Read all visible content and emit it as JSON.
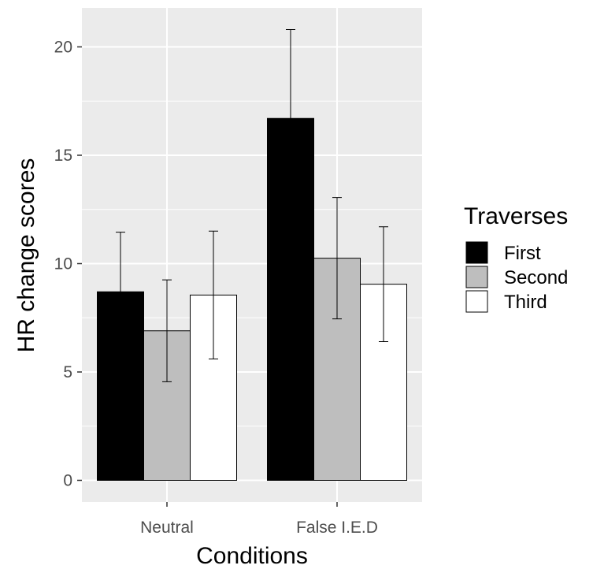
{
  "chart_data": {
    "type": "bar",
    "categories": [
      "Neutral",
      "False I.E.D"
    ],
    "series": [
      {
        "name": "First",
        "values": [
          8.7,
          16.7
        ],
        "error": [
          2.75,
          4.1
        ],
        "color": "#000000"
      },
      {
        "name": "Second",
        "values": [
          6.9,
          10.25
        ],
        "error": [
          2.35,
          2.8
        ],
        "color": "#bebebe"
      },
      {
        "name": "Third",
        "values": [
          8.55,
          9.05
        ],
        "error": [
          2.95,
          2.65
        ],
        "color": "#ffffff"
      }
    ],
    "xlabel": "Conditions",
    "ylabel": "HR change scores",
    "ylim": [
      -1,
      21.8
    ],
    "yticks": [
      0,
      5,
      10,
      15,
      20
    ],
    "ytick_labels": [
      "0",
      "5",
      "10",
      "15",
      "20"
    ],
    "legend": {
      "title": "Traverses",
      "position": "right"
    },
    "grid": true,
    "panel_background": "#ebebeb",
    "grid_color": "#ffffff",
    "bar_outline": "#000000"
  }
}
